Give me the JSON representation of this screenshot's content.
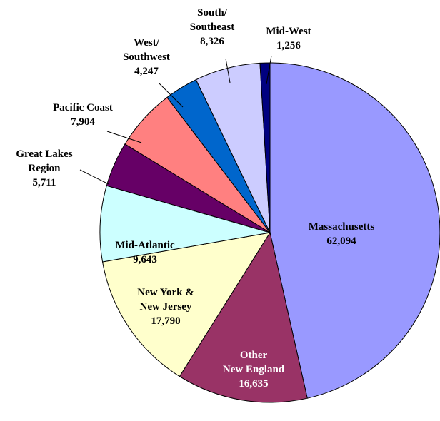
{
  "chart_data": {
    "type": "pie",
    "categories": [
      "Massachusetts",
      "Other\nNew England",
      "New York &\nNew Jersey",
      "Mid-Atlantic",
      "Great Lakes\nRegion",
      "Pacific Coast",
      "West/\nSouthwest",
      "South/\nSoutheast",
      "Mid-West"
    ],
    "values": [
      62094,
      16635,
      17790,
      9643,
      5711,
      7904,
      4247,
      8326,
      1256
    ],
    "value_labels": [
      "62,094",
      "16,635",
      "17,790",
      "9,643",
      "5,711",
      "7,904",
      "4,247",
      "8,326",
      "1,256"
    ],
    "colors": [
      "#9999ff",
      "#993366",
      "#ffffcc",
      "#ccffff",
      "#660066",
      "#ff8080",
      "#0066cc",
      "#ccccff",
      "#000080"
    ]
  }
}
